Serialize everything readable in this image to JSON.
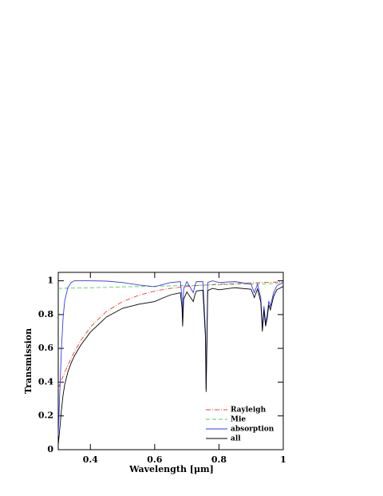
{
  "chart_data": {
    "type": "line",
    "xlabel": "Wavelength [μm]",
    "ylabel": "Transmission",
    "xlim": [
      0.3,
      1
    ],
    "ylim": [
      0,
      1.05
    ],
    "xticks": [
      0.4,
      0.6,
      0.8,
      1
    ],
    "yticks": [
      0,
      0.2,
      0.4,
      0.6,
      0.8,
      1
    ],
    "legend": "lower right",
    "x": [
      0.3,
      0.305,
      0.31,
      0.315,
      0.32,
      0.33,
      0.34,
      0.35,
      0.37,
      0.4,
      0.45,
      0.5,
      0.55,
      0.6,
      0.62,
      0.65,
      0.68,
      0.685,
      0.687,
      0.69,
      0.7,
      0.72,
      0.725,
      0.73,
      0.75,
      0.758,
      0.76,
      0.762,
      0.765,
      0.78,
      0.8,
      0.85,
      0.9,
      0.91,
      0.92,
      0.93,
      0.935,
      0.94,
      0.945,
      0.95,
      0.955,
      0.96,
      0.97,
      0.98,
      1.0
    ],
    "series": [
      {
        "name": "Rayleigh",
        "color": "#e8432f",
        "style": "dashdot",
        "values": [
          0.363,
          0.387,
          0.411,
          0.435,
          0.457,
          0.501,
          0.541,
          0.579,
          0.646,
          0.726,
          0.819,
          0.877,
          0.914,
          0.939,
          0.946,
          0.955,
          0.962,
          0.963,
          0.964,
          0.964,
          0.966,
          0.97,
          0.97,
          0.971,
          0.974,
          0.975,
          0.975,
          0.976,
          0.976,
          0.978,
          0.98,
          0.984,
          0.988,
          0.988,
          0.989,
          0.99,
          0.99,
          0.99,
          0.991,
          0.991,
          0.991,
          0.991,
          0.992,
          0.992,
          0.992
        ]
      },
      {
        "name": "Mie",
        "color": "#4fd24f",
        "style": "dashed",
        "values": [
          0.955,
          0.955,
          0.955,
          0.956,
          0.956,
          0.956,
          0.957,
          0.957,
          0.958,
          0.959,
          0.961,
          0.964,
          0.966,
          0.968,
          0.969,
          0.97,
          0.971,
          0.972,
          0.972,
          0.972,
          0.972,
          0.973,
          0.973,
          0.973,
          0.974,
          0.975,
          0.975,
          0.975,
          0.975,
          0.976,
          0.976,
          0.979,
          0.981,
          0.981,
          0.982,
          0.982,
          0.982,
          0.982,
          0.983,
          0.983,
          0.983,
          0.983,
          0.984,
          0.984,
          0.985
        ]
      },
      {
        "name": "absorption",
        "color": "#3a3ae8",
        "style": "solid",
        "values": [
          0.08,
          0.35,
          0.6,
          0.78,
          0.88,
          0.96,
          0.99,
          1.0,
          1.0,
          1.0,
          0.998,
          0.99,
          0.975,
          0.965,
          0.975,
          0.99,
          0.995,
          0.9,
          0.78,
          0.95,
          0.995,
          0.93,
          0.97,
          0.995,
          0.995,
          0.7,
          0.36,
          0.6,
          0.99,
          1.0,
          0.99,
          0.995,
          0.98,
          0.93,
          0.98,
          0.9,
          0.72,
          0.85,
          0.75,
          0.8,
          0.88,
          0.85,
          0.93,
          0.97,
          0.99
        ]
      },
      {
        "name": "all",
        "color": "#000000",
        "style": "solid",
        "values": [
          0.028,
          0.129,
          0.235,
          0.324,
          0.384,
          0.46,
          0.513,
          0.554,
          0.619,
          0.696,
          0.786,
          0.837,
          0.861,
          0.877,
          0.894,
          0.917,
          0.929,
          0.842,
          0.731,
          0.89,
          0.934,
          0.878,
          0.916,
          0.94,
          0.944,
          0.665,
          0.342,
          0.571,
          0.942,
          0.955,
          0.947,
          0.959,
          0.95,
          0.901,
          0.952,
          0.875,
          0.7,
          0.826,
          0.731,
          0.779,
          0.857,
          0.828,
          0.908,
          0.947,
          0.967
        ]
      }
    ]
  }
}
